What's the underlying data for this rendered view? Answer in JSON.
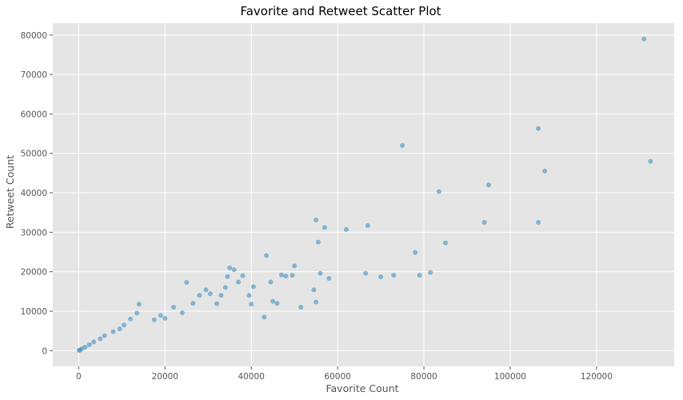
{
  "chart_data": {
    "type": "scatter",
    "title": "Favorite and Retweet Scatter Plot",
    "xlabel": "Favorite Count",
    "ylabel": "Retweet Count",
    "xlim": [
      -6000,
      138000
    ],
    "ylim": [
      -4000,
      83000
    ],
    "xticks": [
      0,
      20000,
      40000,
      60000,
      80000,
      100000,
      120000
    ],
    "yticks": [
      0,
      10000,
      20000,
      30000,
      40000,
      50000,
      60000,
      70000,
      80000
    ],
    "grid": true,
    "legend": "none",
    "colors": {
      "background": "#e5e5e5",
      "grid": "#ffffff",
      "point": "#348abd"
    },
    "series": [
      {
        "points": [
          [
            131000,
            79000
          ],
          [
            132500,
            48000
          ],
          [
            106500,
            56300
          ],
          [
            108000,
            45500
          ],
          [
            106500,
            32500
          ],
          [
            95000,
            42000
          ],
          [
            94000,
            32500
          ],
          [
            83500,
            40300
          ],
          [
            85000,
            27300
          ],
          [
            81500,
            19800
          ],
          [
            79000,
            19100
          ],
          [
            78000,
            24900
          ],
          [
            75000,
            52000
          ],
          [
            73000,
            19100
          ],
          [
            70000,
            18700
          ],
          [
            67000,
            31700
          ],
          [
            66500,
            19600
          ],
          [
            62000,
            30700
          ],
          [
            58000,
            18300
          ],
          [
            57000,
            31200
          ],
          [
            56000,
            19600
          ],
          [
            55500,
            27500
          ],
          [
            55000,
            33100
          ],
          [
            54500,
            15400
          ],
          [
            55000,
            12300
          ],
          [
            51500,
            11000
          ],
          [
            50000,
            21500
          ],
          [
            49500,
            19100
          ],
          [
            48000,
            18900
          ],
          [
            47000,
            19200
          ],
          [
            46000,
            12000
          ],
          [
            45000,
            12500
          ],
          [
            44500,
            17400
          ],
          [
            43500,
            24100
          ],
          [
            43000,
            8500
          ],
          [
            40500,
            16200
          ],
          [
            40000,
            11800
          ],
          [
            39500,
            14000
          ],
          [
            38000,
            19000
          ],
          [
            37000,
            17400
          ],
          [
            36000,
            20500
          ],
          [
            35000,
            21000
          ],
          [
            34500,
            18800
          ],
          [
            34000,
            16000
          ],
          [
            33000,
            14000
          ],
          [
            32000,
            11900
          ],
          [
            30500,
            14400
          ],
          [
            29500,
            15400
          ],
          [
            28000,
            14000
          ],
          [
            26500,
            12000
          ],
          [
            25000,
            17300
          ],
          [
            24000,
            9600
          ],
          [
            22000,
            11000
          ],
          [
            20000,
            8200
          ],
          [
            19000,
            8900
          ],
          [
            17500,
            7800
          ],
          [
            14000,
            11800
          ],
          [
            13500,
            9500
          ],
          [
            12000,
            8000
          ],
          [
            10500,
            6500
          ],
          [
            9500,
            5500
          ],
          [
            8000,
            4800
          ],
          [
            6000,
            3800
          ],
          [
            5000,
            3000
          ],
          [
            3500,
            2200
          ],
          [
            2500,
            1500
          ],
          [
            1500,
            900
          ],
          [
            800,
            500
          ],
          [
            300,
            150
          ],
          [
            100,
            50
          ]
        ]
      }
    ]
  }
}
